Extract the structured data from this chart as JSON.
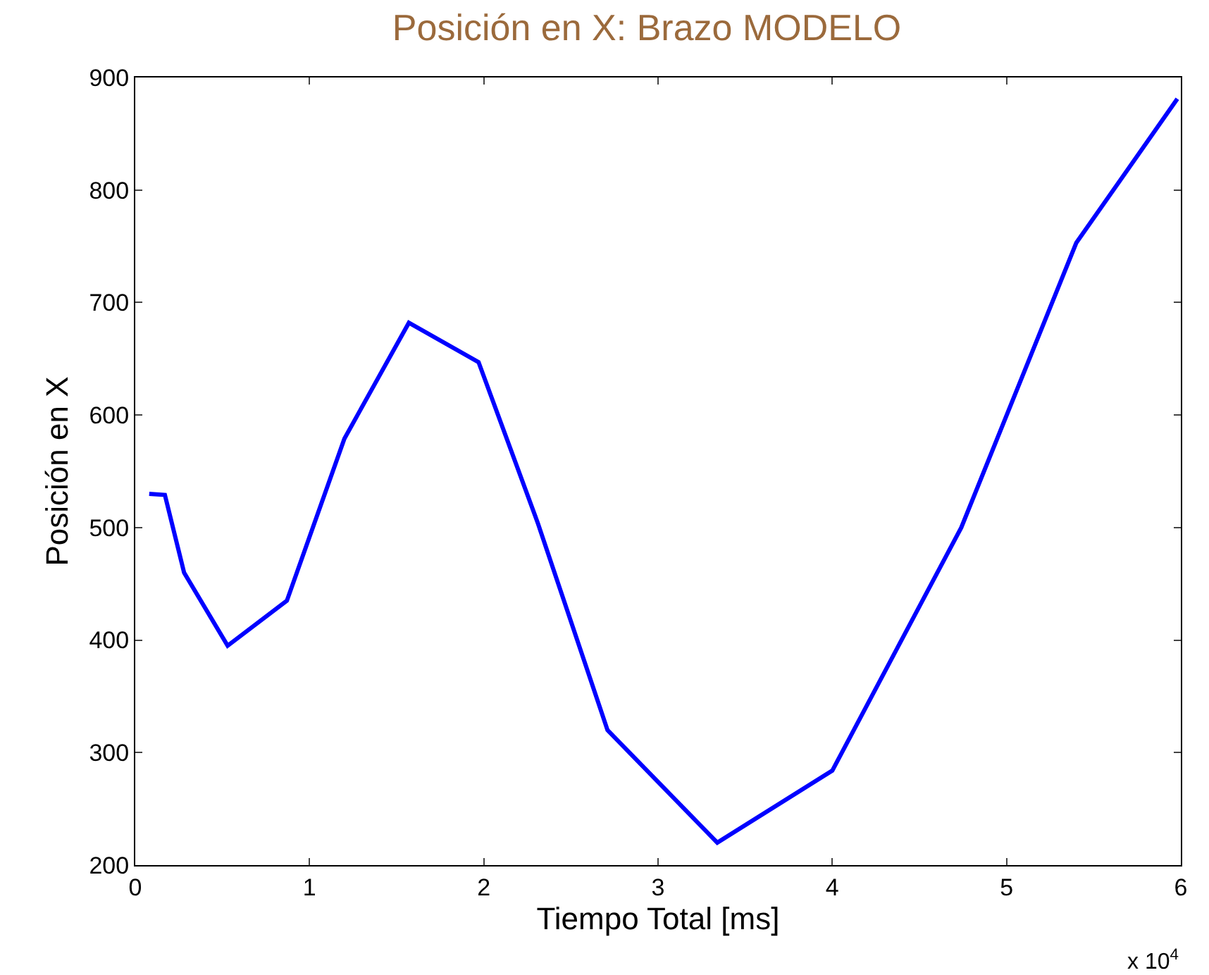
{
  "chart_data": {
    "type": "line",
    "title": "Posición en X: Brazo MODELO",
    "xlabel": "Tiempo Total [ms]",
    "ylabel": "Posición en X",
    "x": [
      0.08,
      0.17,
      0.28,
      0.53,
      0.87,
      1.2,
      1.57,
      1.97,
      2.31,
      2.71,
      3.34,
      4.0,
      4.74,
      5.4,
      5.98
    ],
    "series": [
      {
        "color": "#0000ff",
        "values": [
          530,
          529,
          460,
          395,
          435,
          579,
          682,
          647,
          504,
          320,
          220,
          284,
          500,
          753,
          881
        ]
      }
    ],
    "xlim": [
      0,
      6
    ],
    "ylim": [
      200,
      900
    ],
    "xticks": [
      0,
      1,
      2,
      3,
      4,
      5,
      6
    ],
    "yticks": [
      200,
      300,
      400,
      500,
      600,
      700,
      800,
      900
    ],
    "annotations": [
      "x 10$^{4}$"
    ],
    "marker": "none",
    "line_style": "solid"
  }
}
